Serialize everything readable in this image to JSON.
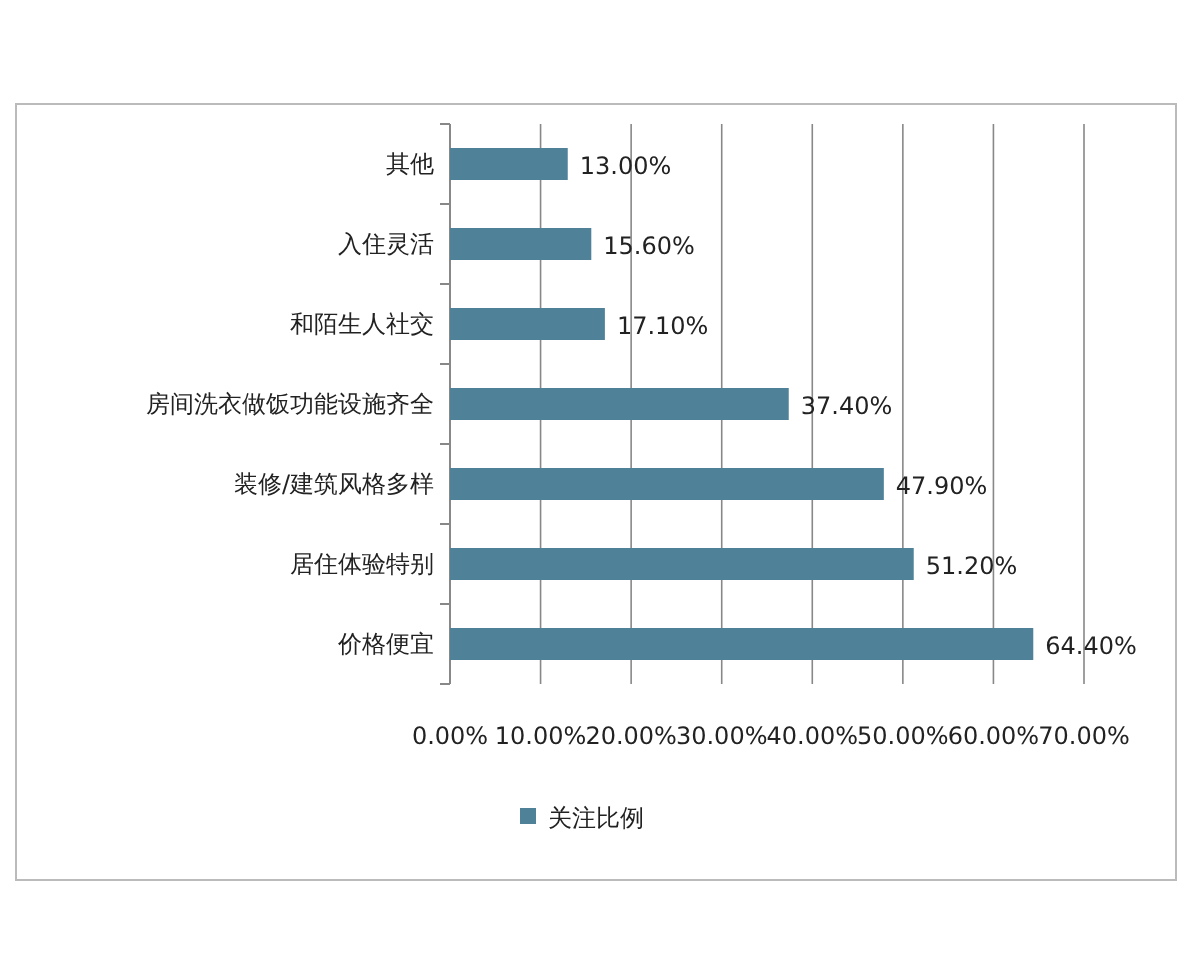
{
  "chart_data": {
    "type": "bar",
    "orientation": "horizontal",
    "categories": [
      "其他",
      "入住灵活",
      "和陌生人社交",
      "房间洗衣做饭功能设施齐全",
      "装修/建筑风格多样",
      "居住体验特别",
      "价格便宜"
    ],
    "series": [
      {
        "name": "关注比例",
        "color": "#4f8198",
        "values": [
          13,
          15.6,
          17.1,
          37.4,
          47.9,
          51.2,
          64.4
        ],
        "value_labels": [
          "13.00%",
          "15.60%",
          "17.10%",
          "37.40%",
          "47.90%",
          "51.20%",
          "64.40%"
        ]
      }
    ],
    "xlim": [
      0,
      70
    ],
    "xticks": [
      {
        "value": 0,
        "label": "0.00%"
      },
      {
        "value": 10,
        "label": "10.00%"
      },
      {
        "value": 20,
        "label": "20.00%"
      },
      {
        "value": 30,
        "label": "30.00%"
      },
      {
        "value": 40,
        "label": "40.00%"
      },
      {
        "value": 50,
        "label": "50.00%"
      },
      {
        "value": 60,
        "label": "60.00%"
      },
      {
        "value": 70,
        "label": "70.00%"
      }
    ],
    "grid": "x",
    "legend": "bottom"
  }
}
